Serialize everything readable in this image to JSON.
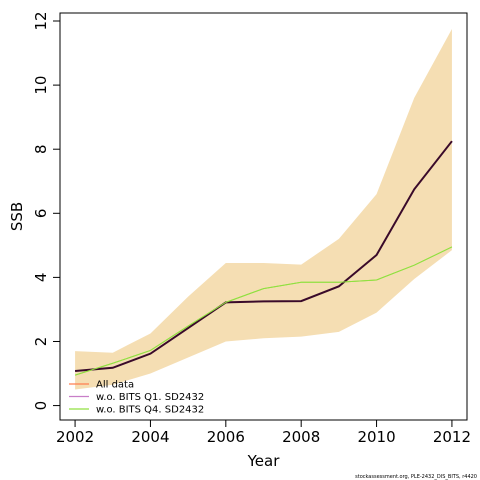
{
  "chart_data": {
    "type": "line",
    "xlabel": "Year",
    "ylabel": "SSB",
    "xlim": [
      2001.6,
      2012.4
    ],
    "ylim": [
      -0.45,
      12.25
    ],
    "xticks": [
      2002,
      2004,
      2006,
      2008,
      2010,
      2012
    ],
    "yticks": [
      0,
      2,
      4,
      6,
      8,
      10,
      12
    ],
    "grid": false,
    "legend_position": "bottom-left",
    "band": {
      "x": [
        2002,
        2003,
        2004,
        2005,
        2006,
        2007,
        2008,
        2009,
        2010,
        2011,
        2012
      ],
      "lower": [
        0.5,
        0.65,
        1.0,
        1.5,
        2.0,
        2.1,
        2.15,
        2.3,
        2.9,
        3.95,
        4.85
      ],
      "upper": [
        1.7,
        1.65,
        2.25,
        3.4,
        4.45,
        4.45,
        4.4,
        5.2,
        6.6,
        9.6,
        11.75
      ],
      "color": "#f5deb3"
    },
    "series": [
      {
        "name": "All data",
        "color": "#ff7f50",
        "line_width": 1,
        "x": [
          2002,
          2003,
          2004,
          2005,
          2006,
          2007,
          2008,
          2009,
          2010,
          2011,
          2012
        ],
        "values": [
          1.08,
          1.18,
          1.62,
          2.42,
          3.22,
          3.25,
          3.26,
          3.72,
          4.7,
          6.75,
          8.25
        ]
      },
      {
        "name": "w.o. BITS Q1. SD2432",
        "color": "#c87ec8",
        "line_width": 1,
        "x": [
          2002,
          2003,
          2004,
          2005,
          2006,
          2007,
          2008,
          2009,
          2010,
          2011,
          2012
        ],
        "values": [
          1.08,
          1.18,
          1.62,
          2.42,
          3.22,
          3.25,
          3.26,
          3.72,
          4.7,
          6.75,
          8.25
        ]
      },
      {
        "name": "w.o. BITS Q4. SD2432",
        "color": "#90e040",
        "line_width": 1,
        "x": [
          2002,
          2003,
          2004,
          2005,
          2006,
          2007,
          2008,
          2009,
          2010,
          2011,
          2012
        ],
        "values": [
          0.95,
          1.32,
          1.72,
          2.48,
          3.22,
          3.65,
          3.85,
          3.85,
          3.92,
          4.38,
          4.95
        ]
      }
    ],
    "main_line": {
      "color": "#3a0a2a",
      "x": [
        2002,
        2003,
        2004,
        2005,
        2006,
        2007,
        2008,
        2009,
        2010,
        2011,
        2012
      ],
      "values": [
        1.08,
        1.18,
        1.62,
        2.42,
        3.22,
        3.25,
        3.26,
        3.72,
        4.7,
        6.75,
        8.25
      ]
    },
    "footnote": "stockassessment.org, PLE-2432_DIS_BITS, r4420"
  }
}
